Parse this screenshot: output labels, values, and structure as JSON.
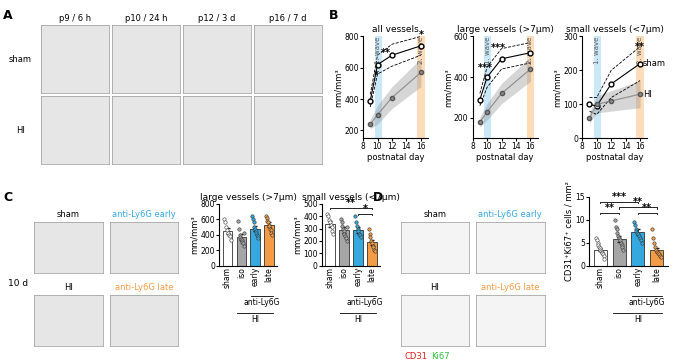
{
  "panel_labels": [
    "A",
    "B",
    "C",
    "D"
  ],
  "panel_a": {
    "columns": [
      "p9 / 6 h",
      "p10 / 24 h",
      "p12 / 3 d",
      "p16 / 7 d"
    ],
    "rows": [
      "sham",
      "HI"
    ]
  },
  "panel_c_images": {
    "title": "10 d",
    "labels": [
      "sham",
      "anti-Ly6G early",
      "HI",
      "anti-Ly6G late"
    ],
    "colors": [
      "#000000",
      "#35a8e0",
      "#000000",
      "#f39c45"
    ]
  },
  "panel_d_images": {
    "labels": [
      "sham",
      "anti-Ly6G early",
      "HI",
      "anti-Ly6G late"
    ],
    "colors": [
      "#000000",
      "#35a8e0",
      "#000000",
      "#f39c45"
    ],
    "stains": [
      {
        "name": "CD31",
        "color": "#e0201b"
      },
      {
        "name": "Ki67",
        "color": "#2fbf3f"
      }
    ]
  },
  "chart_data": [
    {
      "type": "line",
      "title": "all vessels",
      "xlabel": "postnatal day",
      "ylabel": "mm/mm³",
      "x": [
        9,
        10,
        12,
        16
      ],
      "xlim": [
        8,
        17
      ],
      "xticks": [
        8,
        10,
        12,
        14,
        16
      ],
      "ylim": [
        150,
        800
      ],
      "yticks": [
        200,
        400,
        600,
        800
      ],
      "bands": [
        {
          "label": "1. wave",
          "x": [
            9.6,
            10.6
          ],
          "color": "#bfe3f7"
        },
        {
          "label": "2. wave",
          "x": [
            15.5,
            16.5
          ],
          "color": "#fcd4a8"
        }
      ],
      "series": [
        {
          "color": "#000000",
          "values": [
            390,
            620,
            680,
            740
          ],
          "error": [
            40,
            60,
            70,
            60
          ]
        },
        {
          "color": "#8c8c8c",
          "values": [
            240,
            300,
            410,
            570
          ],
          "error": [
            30,
            60,
            70,
            90
          ]
        }
      ],
      "annotations": [
        {
          "text": "*",
          "x": 9.8,
          "y": 520
        },
        {
          "text": "**",
          "x": 11.2,
          "y": 660
        },
        {
          "text": "*",
          "x": 16,
          "y": 780
        }
      ]
    },
    {
      "type": "line",
      "title": "large vessels (>7µm)",
      "xlabel": "postnatal day",
      "ylabel": "mm/mm³",
      "x": [
        9,
        10,
        12,
        16
      ],
      "xlim": [
        8,
        17
      ],
      "xticks": [
        8,
        10,
        12,
        14,
        16
      ],
      "ylim": [
        100,
        600
      ],
      "yticks": [
        200,
        400,
        600
      ],
      "bands": [
        {
          "label": "1. wave",
          "x": [
            9.6,
            10.6
          ],
          "color": "#bfe3f7"
        },
        {
          "label": "2. wave",
          "x": [
            15.5,
            16.5
          ],
          "color": "#fcd4a8"
        }
      ],
      "series": [
        {
          "color": "#000000",
          "values": [
            290,
            400,
            490,
            520
          ],
          "error": [
            30,
            50,
            50,
            50
          ]
        },
        {
          "color": "#8c8c8c",
          "values": [
            180,
            230,
            320,
            440
          ],
          "error": [
            25,
            40,
            50,
            60
          ]
        }
      ],
      "annotations": [
        {
          "text": "***",
          "x": 9.7,
          "y": 420
        },
        {
          "text": "***",
          "x": 11.5,
          "y": 520
        }
      ]
    },
    {
      "type": "line",
      "title": "small vessels (<7µm)",
      "xlabel": "postnatal day",
      "ylabel": "mm/mm³",
      "x": [
        9,
        10,
        12,
        16
      ],
      "xlim": [
        8,
        17
      ],
      "xticks": [
        8,
        10,
        12,
        14,
        16
      ],
      "ylim": [
        0,
        300
      ],
      "yticks": [
        0,
        100,
        200,
        300
      ],
      "bands": [
        {
          "label": "1. wave",
          "x": [
            9.6,
            10.6
          ],
          "color": "#bfe3f7"
        },
        {
          "label": "2. wave",
          "x": [
            15.5,
            16.5
          ],
          "color": "#fcd4a8"
        }
      ],
      "series": [
        {
          "name": "sham",
          "color": "#000000",
          "values": [
            100,
            95,
            160,
            220
          ],
          "error": [
            20,
            25,
            40,
            50
          ]
        },
        {
          "name": "HI",
          "color": "#8c8c8c",
          "values": [
            60,
            100,
            110,
            130
          ],
          "error": [
            15,
            25,
            30,
            40
          ]
        }
      ],
      "annotations": [
        {
          "text": "**",
          "x": 16,
          "y": 255
        }
      ]
    },
    {
      "type": "bar",
      "title": "large vessels (>7µm)",
      "ylabel": "mm/mm³",
      "categories": [
        "sham",
        "iso",
        "early",
        "late"
      ],
      "colors": [
        "#ffffff",
        "#a6a6a6",
        "#35a8e0",
        "#f39c45"
      ],
      "values": [
        450,
        370,
        480,
        530
      ],
      "error": [
        35,
        35,
        30,
        30
      ],
      "points": [
        [
          600,
          560,
          500,
          460,
          420,
          400,
          380,
          330
        ],
        [
          580,
          480,
          400,
          370,
          350,
          330,
          310,
          290,
          260,
          420
        ],
        [
          640,
          600,
          560,
          500,
          480,
          450,
          420,
          400,
          380,
          360
        ],
        [
          640,
          620,
          580,
          560,
          530,
          510,
          480,
          460,
          420,
          400
        ]
      ],
      "ylim": [
        0,
        800
      ],
      "yticks": [
        0,
        200,
        400,
        600,
        800
      ],
      "groups": [
        {
          "label": "anti-Ly6G",
          "from": 2,
          "to": 3
        },
        {
          "label": "HI",
          "from": 1,
          "to": 3
        }
      ],
      "brackets": []
    },
    {
      "type": "bar",
      "title": "small vessels (<7µm)",
      "ylabel": "mm/mm³",
      "categories": [
        "sham",
        "iso",
        "early",
        "late"
      ],
      "colors": [
        "#ffffff",
        "#a6a6a6",
        "#35a8e0",
        "#f39c45"
      ],
      "values": [
        340,
        290,
        290,
        190
      ],
      "error": [
        25,
        25,
        25,
        20
      ],
      "points": [
        [
          420,
          400,
          370,
          350,
          330,
          310,
          280,
          260
        ],
        [
          380,
          350,
          320,
          300,
          280,
          260,
          240,
          220,
          200,
          310
        ],
        [
          400,
          350,
          320,
          300,
          280,
          260,
          250,
          230
        ],
        [
          300,
          260,
          230,
          200,
          180,
          160,
          150,
          130,
          120
        ]
      ],
      "ylim": [
        0,
        500
      ],
      "yticks": [
        0,
        100,
        200,
        300,
        400,
        500
      ],
      "groups": [
        {
          "label": "anti-Ly6G",
          "from": 2,
          "to": 3
        },
        {
          "label": "HI",
          "from": 1,
          "to": 3
        }
      ],
      "brackets": [
        {
          "from": 0,
          "to": 3,
          "y": 470,
          "text": "**"
        },
        {
          "from": 2,
          "to": 3,
          "y": 420,
          "text": "*"
        }
      ]
    },
    {
      "type": "bar",
      "ylabel": "CD31⁺Ki67⁺ cells / mm²",
      "categories": [
        "sham",
        "iso",
        "early",
        "late"
      ],
      "colors": [
        "#ffffff",
        "#a6a6a6",
        "#35a8e0",
        "#f39c45"
      ],
      "values": [
        3.5,
        5.8,
        7.3,
        3.4
      ],
      "error": [
        0.4,
        0.6,
        0.6,
        0.5
      ],
      "points": [
        [
          6,
          5.5,
          5,
          4.5,
          4,
          3.8,
          3.5,
          3.2,
          3,
          2.8,
          2.5,
          2,
          1.5
        ],
        [
          10,
          8.5,
          8,
          7,
          6.5,
          6,
          5.5,
          5,
          4.5,
          4,
          3.5
        ],
        [
          9.5,
          8.8,
          8,
          7.5,
          7,
          6.8,
          6.5,
          6,
          5.5,
          5
        ],
        [
          8,
          6,
          5,
          4,
          3.5,
          3,
          2.8,
          2.5,
          2,
          1.8
        ]
      ],
      "ylim": [
        0,
        15
      ],
      "yticks": [
        0,
        5,
        10,
        15
      ],
      "groups": [
        {
          "label": "anti-Ly6G",
          "from": 2,
          "to": 3
        },
        {
          "label": "HI",
          "from": 1,
          "to": 3
        }
      ],
      "brackets": [
        {
          "from": 0,
          "to": 1,
          "y": 11.5,
          "text": "**"
        },
        {
          "from": 0,
          "to": 2,
          "y": 13.8,
          "text": "***"
        },
        {
          "from": 2,
          "to": 3,
          "y": 11.5,
          "text": "**"
        },
        {
          "from": 1,
          "to": 3,
          "y": 12.7,
          "text": "**"
        }
      ]
    }
  ]
}
